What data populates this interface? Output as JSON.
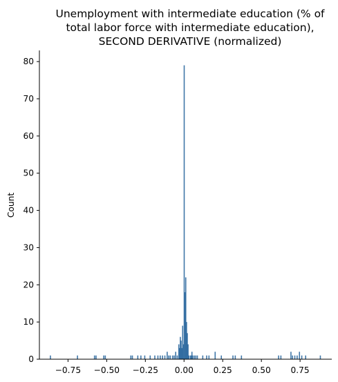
{
  "chart_data": {
    "type": "bar",
    "title_lines": [
      "Unemployment with intermediate education (% of",
      "total labor force with intermediate education),",
      "SECOND DERIVATIVE (normalized)"
    ],
    "xlabel": "",
    "ylabel": "Count",
    "xlim": [
      -0.935,
      0.955
    ],
    "ylim": [
      0,
      83
    ],
    "xticks": [
      -0.75,
      -0.5,
      -0.25,
      0.0,
      0.25,
      0.5,
      0.75
    ],
    "xtick_labels": [
      "−0.75",
      "−0.50",
      "−0.25",
      "0.00",
      "0.25",
      "0.50",
      "0.75"
    ],
    "yticks": [
      0,
      10,
      20,
      30,
      40,
      50,
      60,
      70,
      80
    ],
    "ytick_labels": [
      "0",
      "10",
      "20",
      "30",
      "40",
      "50",
      "60",
      "70",
      "80"
    ],
    "grid": false,
    "bar_color": "#1f5f99",
    "bar_fill_opacity": 0.85,
    "bins": [
      {
        "x": -0.865,
        "count": 1
      },
      {
        "x": -0.69,
        "count": 1
      },
      {
        "x": -0.58,
        "count": 1
      },
      {
        "x": -0.57,
        "count": 1
      },
      {
        "x": -0.52,
        "count": 1
      },
      {
        "x": -0.51,
        "count": 1
      },
      {
        "x": -0.345,
        "count": 1
      },
      {
        "x": -0.335,
        "count": 1
      },
      {
        "x": -0.3,
        "count": 1
      },
      {
        "x": -0.28,
        "count": 1
      },
      {
        "x": -0.255,
        "count": 1
      },
      {
        "x": -0.22,
        "count": 1
      },
      {
        "x": -0.19,
        "count": 1
      },
      {
        "x": -0.17,
        "count": 1
      },
      {
        "x": -0.155,
        "count": 1
      },
      {
        "x": -0.14,
        "count": 1
      },
      {
        "x": -0.125,
        "count": 1
      },
      {
        "x": -0.11,
        "count": 2
      },
      {
        "x": -0.1,
        "count": 1
      },
      {
        "x": -0.09,
        "count": 1
      },
      {
        "x": -0.075,
        "count": 1
      },
      {
        "x": -0.065,
        "count": 1
      },
      {
        "x": -0.055,
        "count": 2
      },
      {
        "x": -0.045,
        "count": 1
      },
      {
        "x": -0.035,
        "count": 4
      },
      {
        "x": -0.03,
        "count": 3
      },
      {
        "x": -0.025,
        "count": 6
      },
      {
        "x": -0.02,
        "count": 5
      },
      {
        "x": -0.015,
        "count": 3
      },
      {
        "x": -0.01,
        "count": 9
      },
      {
        "x": -0.005,
        "count": 4
      },
      {
        "x": 0.0,
        "count": 79
      },
      {
        "x": 0.005,
        "count": 18
      },
      {
        "x": 0.01,
        "count": 22
      },
      {
        "x": 0.015,
        "count": 10
      },
      {
        "x": 0.02,
        "count": 7
      },
      {
        "x": 0.025,
        "count": 4
      },
      {
        "x": 0.03,
        "count": 1
      },
      {
        "x": 0.04,
        "count": 1
      },
      {
        "x": 0.045,
        "count": 1
      },
      {
        "x": 0.05,
        "count": 2
      },
      {
        "x": 0.055,
        "count": 1
      },
      {
        "x": 0.065,
        "count": 1
      },
      {
        "x": 0.075,
        "count": 1
      },
      {
        "x": 0.085,
        "count": 1
      },
      {
        "x": 0.12,
        "count": 1
      },
      {
        "x": 0.145,
        "count": 1
      },
      {
        "x": 0.16,
        "count": 1
      },
      {
        "x": 0.2,
        "count": 2
      },
      {
        "x": 0.24,
        "count": 1
      },
      {
        "x": 0.315,
        "count": 1
      },
      {
        "x": 0.33,
        "count": 1
      },
      {
        "x": 0.37,
        "count": 1
      },
      {
        "x": 0.61,
        "count": 1
      },
      {
        "x": 0.625,
        "count": 1
      },
      {
        "x": 0.69,
        "count": 2
      },
      {
        "x": 0.7,
        "count": 1
      },
      {
        "x": 0.715,
        "count": 1
      },
      {
        "x": 0.73,
        "count": 1
      },
      {
        "x": 0.745,
        "count": 2
      },
      {
        "x": 0.76,
        "count": 1
      },
      {
        "x": 0.785,
        "count": 1
      },
      {
        "x": 0.88,
        "count": 1
      }
    ]
  }
}
